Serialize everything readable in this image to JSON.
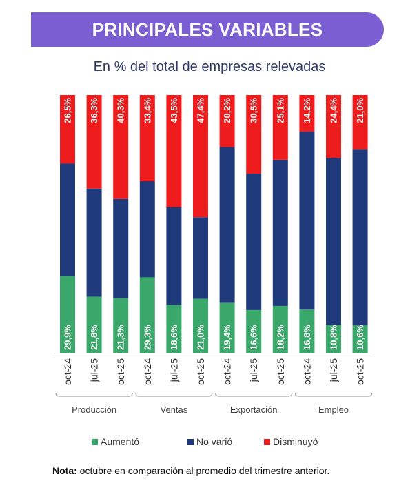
{
  "header": {
    "title": "PRINCIPALES VARIABLES",
    "subtitle": "En % del total de empresas relevadas"
  },
  "note": {
    "label": "Nota:",
    "text": " octubre  en comparación al promedio del trimestre anterior."
  },
  "colors": {
    "aumento": "#3aa86b",
    "no_vario": "#1f3a7a",
    "disminuyo": "#ee1c1c",
    "banner": "#7b5fd2"
  },
  "chart_data": {
    "type": "bar",
    "stacked": true,
    "percent": true,
    "ylim": [
      0,
      100
    ],
    "legend_position": "bottom",
    "groups": [
      {
        "name": "Producción",
        "categories": [
          "oct-24",
          "jul-25",
          "oct-25"
        ]
      },
      {
        "name": "Ventas",
        "categories": [
          "oct-24",
          "jul-25",
          "oct-25"
        ]
      },
      {
        "name": "Exportación",
        "categories": [
          "oct-24",
          "jul-25",
          "oct-25"
        ]
      },
      {
        "name": "Empleo",
        "categories": [
          "oct-24",
          "jul-25",
          "oct-25"
        ]
      }
    ],
    "categories": [
      "oct-24",
      "jul-25",
      "oct-25",
      "oct-24",
      "jul-25",
      "oct-25",
      "oct-24",
      "jul-25",
      "oct-25",
      "oct-24",
      "jul-25",
      "oct-25"
    ],
    "series": [
      {
        "name": "Aumentó",
        "values": [
          29.9,
          21.8,
          21.3,
          29.3,
          18.6,
          21.0,
          19.4,
          16.6,
          18.2,
          16.8,
          10.8,
          10.6
        ],
        "labels": [
          "29,9%",
          "21,8%",
          "21,3%",
          "29,3%",
          "18,6%",
          "21,0%",
          "19,4%",
          "16,6%",
          "18,2%",
          "16,8%",
          "10,8%",
          "10,6%"
        ]
      },
      {
        "name": "No varió",
        "values": [
          43.6,
          41.9,
          38.4,
          37.3,
          37.9,
          31.6,
          60.4,
          52.9,
          56.7,
          69.0,
          64.8,
          68.4
        ]
      },
      {
        "name": "Disminuyó",
        "values": [
          26.5,
          36.3,
          40.3,
          33.4,
          43.5,
          47.4,
          20.2,
          30.5,
          25.1,
          14.2,
          24.4,
          21.0
        ],
        "labels": [
          "26,5%",
          "36,3%",
          "40,3%",
          "33,4%",
          "43,5%",
          "47,4%",
          "20,2%",
          "30,5%",
          "25,1%",
          "14,2%",
          "24,4%",
          "21,0%"
        ]
      }
    ]
  }
}
